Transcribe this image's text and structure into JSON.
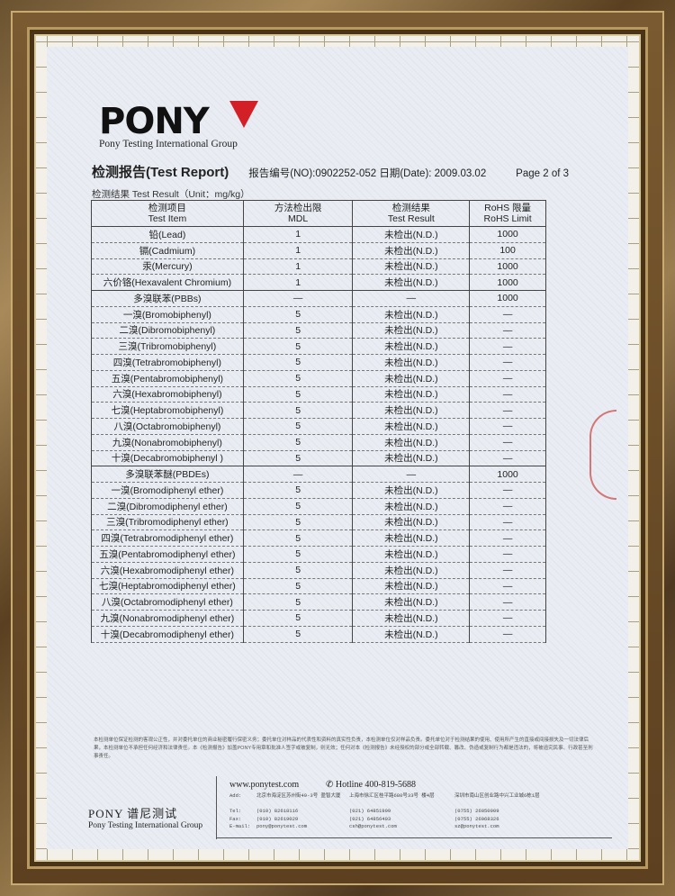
{
  "logo": {
    "text": "PONY",
    "brand_red": "#d31f26"
  },
  "group_name": "Pony Testing International Group",
  "header": {
    "title": "检测报告(Test Report)",
    "report_no": "报告编号(NO):0902252-052 日期(Date): 2009.03.02",
    "page": "Page 2 of 3"
  },
  "unit_line": "检测结果 Test Result（Unit：mg/kg）",
  "table": {
    "headers": [
      [
        "检测项目",
        "Test Item"
      ],
      [
        "方法检出限",
        "MDL"
      ],
      [
        "检测结果",
        "Test Result"
      ],
      [
        "RoHS 限量",
        "RoHS Limit"
      ]
    ],
    "rows": [
      [
        "铅(Lead)",
        "1",
        "未检出(N.D.)",
        "1000"
      ],
      [
        "镉(Cadmium)",
        "1",
        "未检出(N.D.)",
        "100"
      ],
      [
        "汞(Mercury)",
        "1",
        "未检出(N.D.)",
        "1000"
      ],
      [
        "六价铬(Hexavalent Chromium)",
        "1",
        "未检出(N.D.)",
        "1000"
      ],
      [
        "多溴联苯(PBBs)",
        "—",
        "—",
        "1000"
      ],
      [
        "一溴(Bromobiphenyl)",
        "5",
        "未检出(N.D.)",
        "—"
      ],
      [
        "二溴(Dibromobiphenyl)",
        "5",
        "未检出(N.D.)",
        "—"
      ],
      [
        "三溴(Tribromobiphenyl)",
        "5",
        "未检出(N.D.)",
        "—"
      ],
      [
        "四溴(Tetrabromobiphenyl)",
        "5",
        "未检出(N.D.)",
        "—"
      ],
      [
        "五溴(Pentabromobiphenyl)",
        "5",
        "未检出(N.D.)",
        "—"
      ],
      [
        "六溴(Hexabromobiphenyl)",
        "5",
        "未检出(N.D.)",
        "—"
      ],
      [
        "七溴(Heptabromobiphenyl)",
        "5",
        "未检出(N.D.)",
        "—"
      ],
      [
        "八溴(Octabromobiphenyl)",
        "5",
        "未检出(N.D.)",
        "—"
      ],
      [
        "九溴(Nonabromobiphenyl)",
        "5",
        "未检出(N.D.)",
        "—"
      ],
      [
        "十溴(Decabromobiphenyl )",
        "5",
        "未检出(N.D.)",
        "—"
      ],
      [
        "多溴联苯醚(PBDEs)",
        "—",
        "—",
        "1000"
      ],
      [
        "一溴(Bromodiphenyl ether)",
        "5",
        "未检出(N.D.)",
        "—"
      ],
      [
        "二溴(Dibromodiphenyl ether)",
        "5",
        "未检出(N.D.)",
        "—"
      ],
      [
        "三溴(Tribromodiphenyl ether)",
        "5",
        "未检出(N.D.)",
        "—"
      ],
      [
        "四溴(Tetrabromodiphenyl ether)",
        "5",
        "未检出(N.D.)",
        "—"
      ],
      [
        "五溴(Pentabromodiphenyl ether)",
        "5",
        "未检出(N.D.)",
        "—"
      ],
      [
        "六溴(Hexabromodiphenyl ether)",
        "5",
        "未检出(N.D.)",
        "—"
      ],
      [
        "七溴(Heptabromodiphenyl ether)",
        "5",
        "未检出(N.D.)",
        "—"
      ],
      [
        "八溴(Octabromodiphenyl ether)",
        "5",
        "未检出(N.D.)",
        "—"
      ],
      [
        "九溴(Nonabromodiphenyl ether)",
        "5",
        "未检出(N.D.)",
        "—"
      ],
      [
        "十溴(Decabromodiphenyl ether)",
        "5",
        "未检出(N.D.)",
        "—"
      ]
    ]
  },
  "notice": "本检测单位保证检测的客观公正性，并对委托单位的商业秘密履行保密义务；委托单位对样品的代表性和资料的真实性负责，本检测单位仅对样品负责。委托单位对于检测结果的使用、使用所产生的直接或间接损失及一切法律后果，本检测单位不承担任何经济和法律责任。本《检测报告》加盖PONY专用章和批准人签字或被复制，则无效；任何对本《检测报告》未经授权的部分或全部转载、篡改、伪造或复制行为都是违法的，将被追究民事、行政甚至刑事责任。",
  "footer": {
    "brand": "PONY 谱尼测试",
    "group": "Pony Testing International Group",
    "website": "www.ponytest.com",
    "hotline": "Hotline 400-819-5688",
    "labels": [
      "Add:",
      "Tel:",
      "Fax:",
      "E-mail:"
    ],
    "offices": [
      {
        "add": "北京市海淀区苏州街49-3号 盈智大厦",
        "tel": "(010) 82618116",
        "fax": "(010) 82619029",
        "email": "pony@ponytest.com"
      },
      {
        "add": "上海市徐汇区桂平路680号33号 楼4层",
        "tel": "(021) 64851999",
        "fax": "(021) 64856403",
        "email": "csh@ponytest.com"
      },
      {
        "add": "深圳市南山区创业路中兴工业城6栋1层",
        "tel": "(0755) 26050909",
        "fax": "(0755) 26068326",
        "email": "sz@ponytest.com"
      }
    ]
  }
}
